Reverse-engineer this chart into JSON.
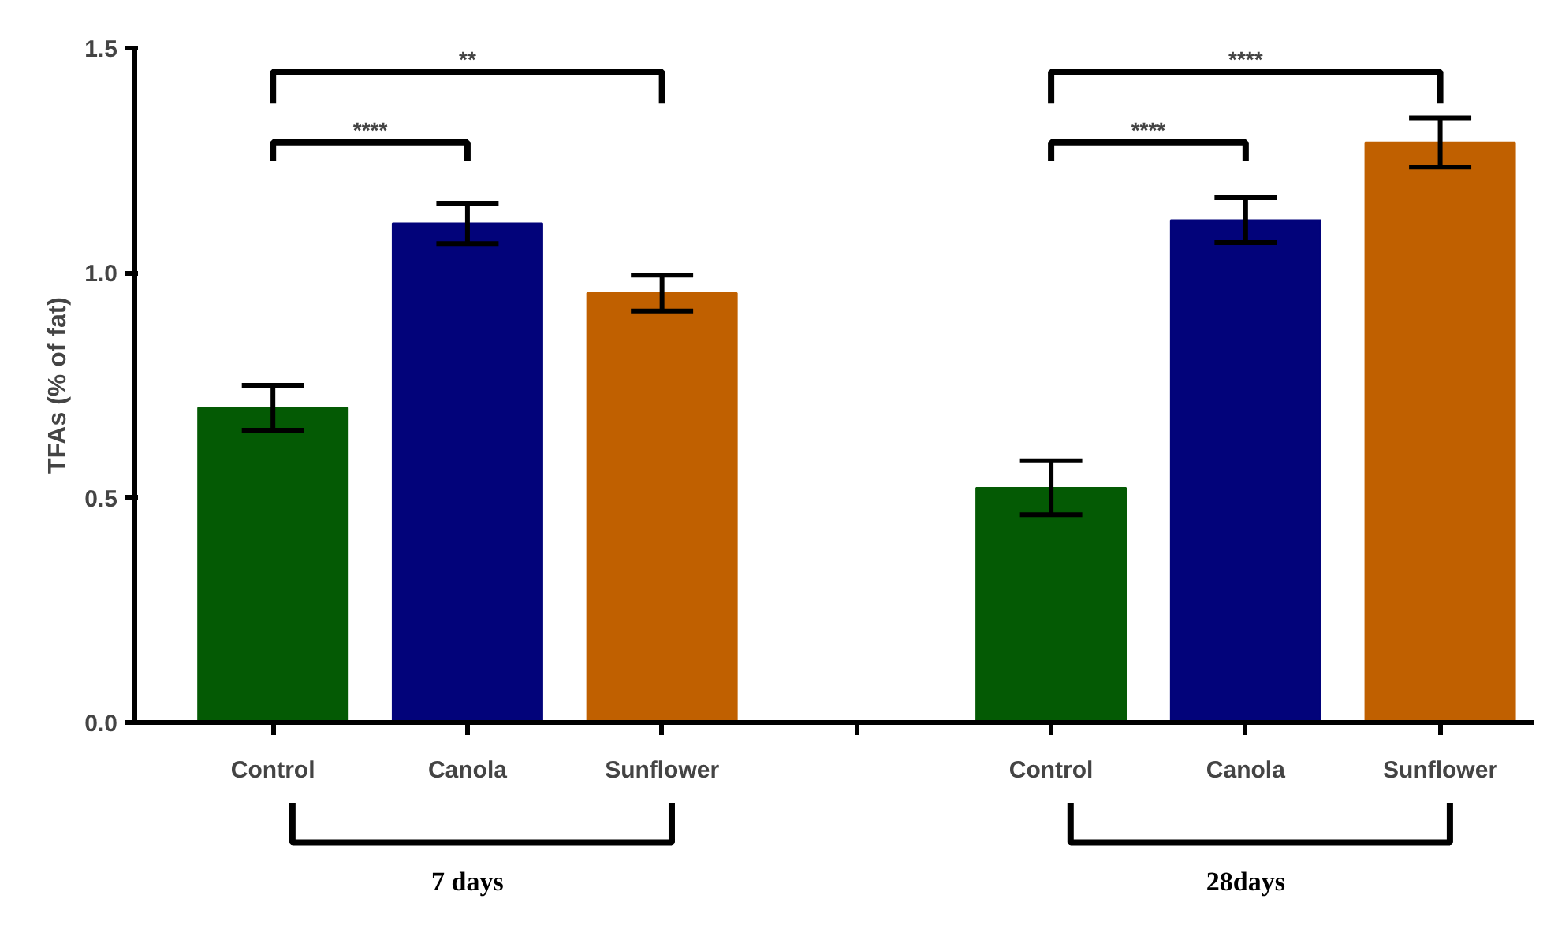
{
  "chart_data": {
    "type": "bar",
    "ylabel": "TFAs (% of fat)",
    "categories": [
      "Control",
      "Canola",
      "Sunflower",
      null,
      "Control",
      "Canola",
      "Sunflower"
    ],
    "values": [
      0.7,
      1.11,
      0.955,
      null,
      0.522,
      1.117,
      1.29
    ],
    "errors": [
      0.05,
      0.045,
      0.04,
      null,
      0.06,
      0.05,
      0.055
    ],
    "colors": [
      "#045a04",
      "#02037a",
      "#c06000",
      "#ffffff",
      "#045a04",
      "#02037a",
      "#c06000"
    ],
    "ylim": [
      0,
      1.5
    ],
    "yticks": [
      {
        "value": 0,
        "label": "0.0"
      },
      {
        "value": 0.5,
        "label": "0.5"
      },
      {
        "value": 1.0,
        "label": "1.0"
      },
      {
        "value": 1.5,
        "label": "1.5"
      }
    ],
    "grid": false,
    "annotations": [
      "****",
      "**",
      "****",
      "****",
      "7 days",
      "28days"
    ]
  }
}
